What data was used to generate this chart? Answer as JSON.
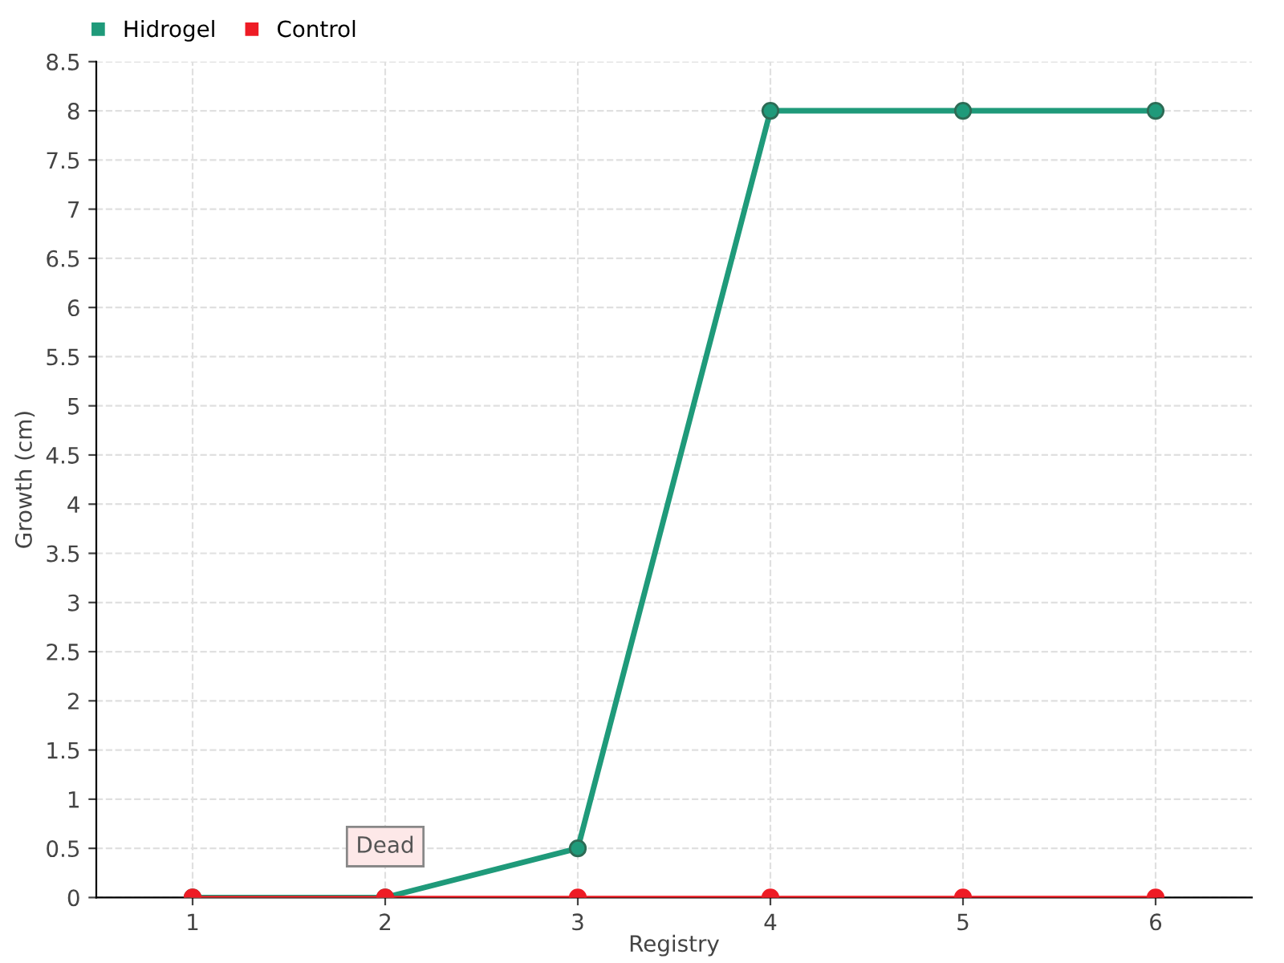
{
  "chart_data": {
    "type": "line",
    "xlabel": "Registry",
    "ylabel": "Growth (cm)",
    "categories": [
      "1",
      "2",
      "3",
      "4",
      "5",
      "6"
    ],
    "series": [
      {
        "name": "Hidrogel",
        "color": "#1f9a7a",
        "values": [
          0,
          0,
          0.5,
          8,
          8,
          8
        ]
      },
      {
        "name": "Control",
        "color": "#ee1c25",
        "values": [
          0,
          0,
          0,
          0,
          0,
          0
        ]
      }
    ],
    "ylim": [
      0,
      8.5
    ],
    "yticks": [
      0,
      0.5,
      1,
      1.5,
      2,
      2.5,
      3,
      3.5,
      4,
      4.5,
      5,
      5.5,
      6,
      6.5,
      7,
      7.5,
      8,
      8.5
    ],
    "grid": true,
    "legend": "top left",
    "marker": "circle",
    "annotations": [
      {
        "text": "Dead",
        "x": "2",
        "y": 0
      }
    ]
  }
}
